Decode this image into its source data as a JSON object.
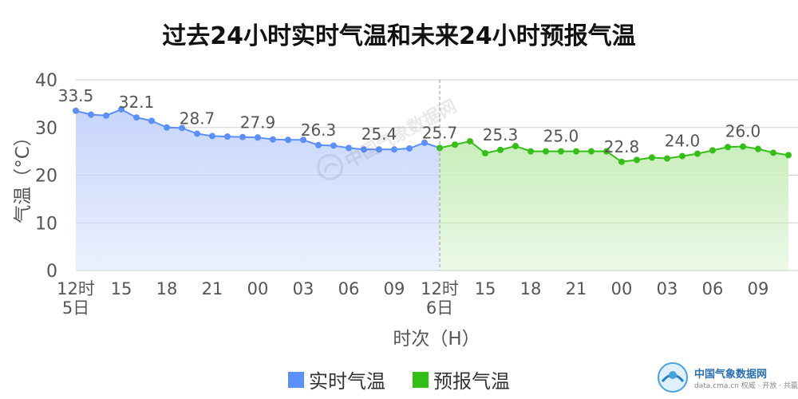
{
  "chart_data": {
    "type": "area",
    "title": "过去24小时实时气温和未来24小时预报气温",
    "xlabel": "时次（H）",
    "ylabel": "气温（°C）",
    "ylim": [
      0,
      40
    ],
    "yticks": [
      0,
      10,
      20,
      30,
      40
    ],
    "x_tick_labels": [
      {
        "index": 0,
        "line1": "12时",
        "line2": "5日"
      },
      {
        "index": 3,
        "line1": "15"
      },
      {
        "index": 6,
        "line1": "18"
      },
      {
        "index": 9,
        "line1": "21"
      },
      {
        "index": 12,
        "line1": "00"
      },
      {
        "index": 15,
        "line1": "03"
      },
      {
        "index": 18,
        "line1": "06"
      },
      {
        "index": 21,
        "line1": "09"
      },
      {
        "index": 24,
        "line1": "12时",
        "line2": "6日"
      },
      {
        "index": 27,
        "line1": "15"
      },
      {
        "index": 30,
        "line1": "18"
      },
      {
        "index": 33,
        "line1": "21"
      },
      {
        "index": 36,
        "line1": "00"
      },
      {
        "index": 39,
        "line1": "03"
      },
      {
        "index": 42,
        "line1": "06"
      },
      {
        "index": 45,
        "line1": "09"
      }
    ],
    "grid": true,
    "legend_position": "bottom",
    "series": [
      {
        "name": "实时气温",
        "color": "#5b8ff9",
        "fill": "#c6d5fb",
        "start_index": 0,
        "values": [
          33.5,
          32.7,
          32.5,
          33.8,
          32.1,
          31.4,
          30.0,
          29.9,
          28.7,
          28.2,
          28.1,
          28.0,
          27.9,
          27.5,
          27.4,
          27.4,
          26.3,
          26.2,
          25.7,
          25.4,
          25.4,
          25.4,
          25.6,
          26.8,
          25.7
        ],
        "labels": [
          {
            "index": 0,
            "text": "33.5"
          },
          {
            "index": 4,
            "text": "32.1"
          },
          {
            "index": 8,
            "text": "28.7"
          },
          {
            "index": 12,
            "text": "27.9"
          },
          {
            "index": 16,
            "text": "26.3"
          },
          {
            "index": 20,
            "text": "25.4"
          },
          {
            "index": 24,
            "text": "25.7"
          }
        ]
      },
      {
        "name": "预报气温",
        "color": "#34bf16",
        "fill": "#c8eebb",
        "start_index": 24,
        "values": [
          25.7,
          26.4,
          27.1,
          24.6,
          25.3,
          26.1,
          25.0,
          25.0,
          25.0,
          25.0,
          25.0,
          25.0,
          22.8,
          23.2,
          23.7,
          23.5,
          24.0,
          24.5,
          25.2,
          25.9,
          26.0,
          25.5,
          24.7,
          24.2
        ],
        "labels": [
          {
            "index": 28,
            "text": "25.3"
          },
          {
            "index": 32,
            "text": "25.0"
          },
          {
            "index": 36,
            "text": "22.8"
          },
          {
            "index": 40,
            "text": "24.0"
          },
          {
            "index": 44,
            "text": "26.0"
          }
        ]
      }
    ],
    "divider_index": 24
  },
  "watermark": {
    "text": "中国气象数据网"
  },
  "logo": {
    "name": "中国气象数据网",
    "url_text": "data.cma.cn 权威 · 开放 · 共赢"
  }
}
